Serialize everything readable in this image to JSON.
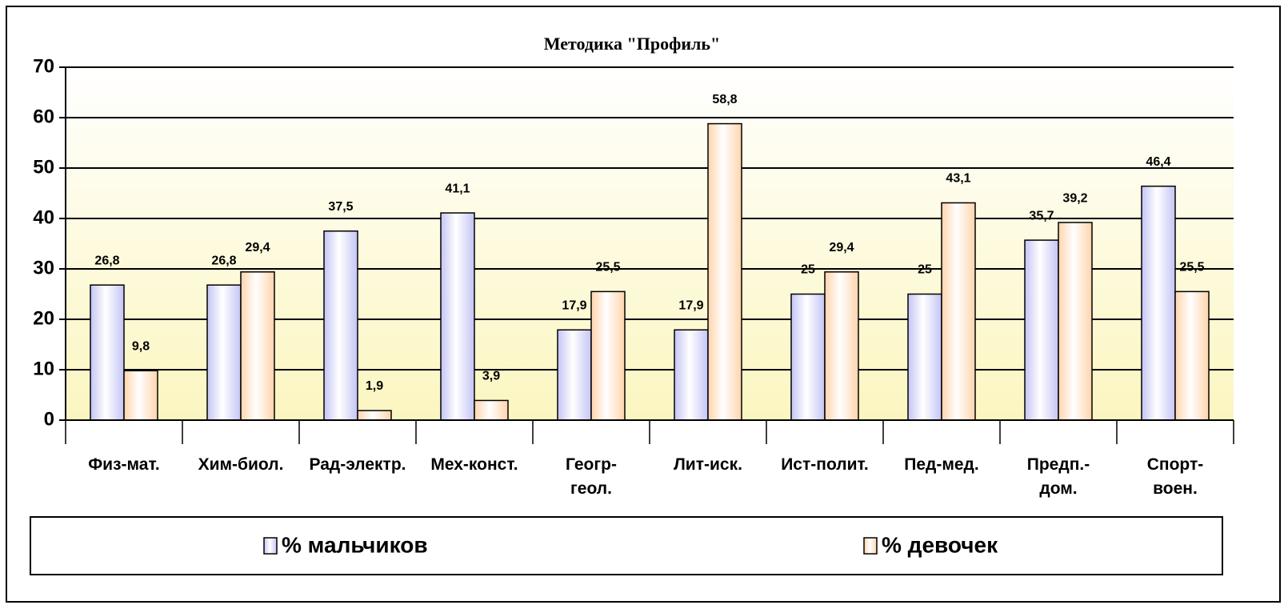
{
  "chart_data": {
    "type": "bar",
    "title": "Методика \"Профиль\"",
    "categories": [
      "Физ-мат.",
      "Хим-биол.",
      "Рад-электр.",
      "Мех-конст.",
      "Геогр-\nгеол.",
      "Лит-иск.",
      "Ист-полит.",
      "Пед-мед.",
      "Предп.-\nдом.",
      "Спорт-\nвоен."
    ],
    "series": [
      {
        "name": "% мальчиков",
        "color": "#c4c4f6",
        "values": [
          26.8,
          26.8,
          37.5,
          41.1,
          17.9,
          17.9,
          25,
          25,
          35.7,
          46.4
        ],
        "value_labels": [
          "26,8",
          "26,8",
          "37,5",
          "41,1",
          "17,9",
          "17,9",
          "25",
          "25",
          "35,7",
          "46,4"
        ]
      },
      {
        "name": "% девочек",
        "color": "#ffd4ac",
        "values": [
          9.8,
          29.4,
          1.9,
          3.9,
          25.5,
          58.8,
          29.4,
          43.1,
          39.2,
          25.5
        ],
        "value_labels": [
          "9,8",
          "29,4",
          "1,9",
          "3,9",
          "25,5",
          "58,8",
          "29,4",
          "43,1",
          "39,2",
          "25,5"
        ]
      }
    ],
    "ylim": [
      0,
      70
    ],
    "yticks": [
      0,
      10,
      20,
      30,
      40,
      50,
      60,
      70
    ],
    "grid": true
  }
}
